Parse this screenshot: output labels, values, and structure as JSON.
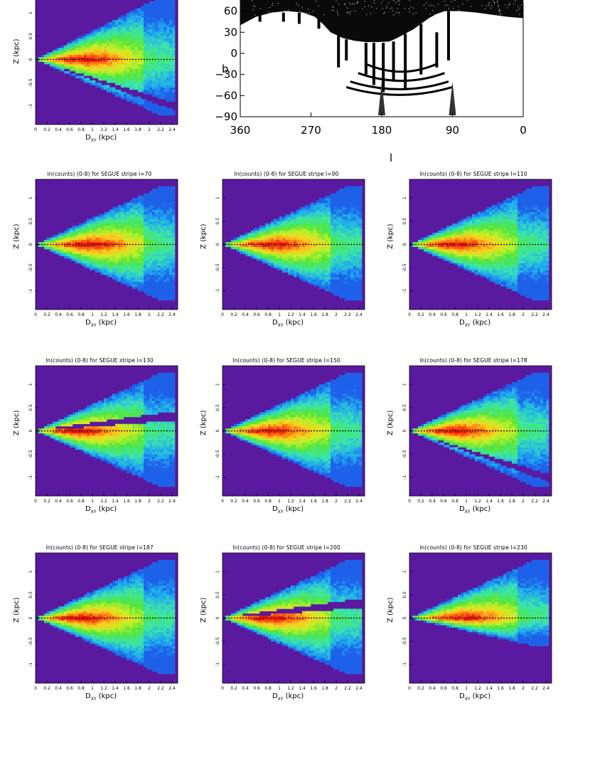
{
  "sky_map": {
    "xlabel": "l",
    "ylabel": "b",
    "xticks": [
      "360",
      "270",
      "180",
      "90",
      "0"
    ],
    "yticks": [
      "60",
      "30",
      "0",
      "−30",
      "−60",
      "−90"
    ],
    "stripe_longitudes": [
      70,
      90,
      110,
      130,
      150,
      178,
      187,
      200,
      230
    ]
  },
  "panel_common": {
    "ylabel": "Z  (kpc)",
    "xlabel_main": "D",
    "xlabel_sub": "XY",
    "xlabel_unit": " (kpc)",
    "xticks": [
      "0",
      "0.2",
      "0.4",
      "0.6",
      "0.8",
      "1",
      "1.2",
      "1.4",
      "1.6",
      "1.8",
      "2",
      "2.2",
      "2.4"
    ],
    "yticks": [
      "1",
      "0.5",
      "0",
      "-0.5",
      "-1"
    ],
    "colors": {
      "background": "#5a1aa0",
      "dotted_line": "#000000"
    }
  },
  "chart_data": [
    {
      "type": "heatmap",
      "title": "",
      "stripe_l": null,
      "upper": 1.35,
      "lower": -1.2,
      "gap": "below",
      "peak": 0.8
    },
    {
      "type": "heatmap",
      "title": "ln(counts) (0-8) for SEGUE stripe l=70",
      "stripe_l": 70,
      "upper": 1.25,
      "lower": -1.2,
      "gap": "none",
      "peak": 0.9
    },
    {
      "type": "heatmap",
      "title": "ln(counts) (0-8) for SEGUE stripe l=90",
      "stripe_l": 90,
      "upper": 1.25,
      "lower": -1.2,
      "gap": "none",
      "peak": 0.85
    },
    {
      "type": "heatmap",
      "title": "ln(counts) (0-8) for SEGUE stripe l=110",
      "stripe_l": 110,
      "upper": 1.25,
      "lower": -1.2,
      "gap": "none",
      "peak": 0.75
    },
    {
      "type": "heatmap",
      "title": "ln(counts) (0-8) for SEGUE stripe l=130",
      "stripe_l": 130,
      "upper": 1.25,
      "lower": -1.2,
      "gap": "above",
      "peak": 0.7
    },
    {
      "type": "heatmap",
      "title": "ln(counts) (0-8) for SEGUE stripe l=150",
      "stripe_l": 150,
      "upper": 1.25,
      "lower": -1.2,
      "gap": "none",
      "peak": 0.8
    },
    {
      "type": "heatmap",
      "title": "ln(counts) (0-8) for SEGUE stripe l=178",
      "stripe_l": 178,
      "upper": 1.25,
      "lower": -1.2,
      "gap": "below",
      "peak": 0.75
    },
    {
      "type": "heatmap",
      "title": "ln(counts) (0-8) for SEGUE stripe l=187",
      "stripe_l": 187,
      "upper": 1.25,
      "lower": -1.2,
      "gap": "none",
      "peak": 0.75
    },
    {
      "type": "heatmap",
      "title": "ln(counts) (0-8) for SEGUE stripe l=200",
      "stripe_l": 200,
      "upper": 1.25,
      "lower": -1.2,
      "gap": "above",
      "peak": 0.8
    },
    {
      "type": "heatmap",
      "title": "ln(counts) (0-8) for SEGUE stripe l=230",
      "stripe_l": 230,
      "upper": 1.25,
      "lower": -0.6,
      "gap": "none",
      "peak": 0.9
    }
  ]
}
